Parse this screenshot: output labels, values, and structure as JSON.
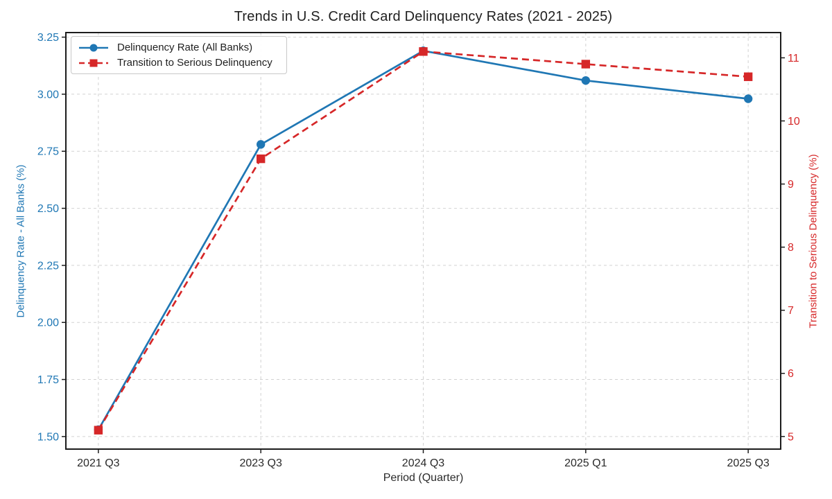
{
  "chart_data": {
    "type": "line",
    "title": "Trends in U.S. Credit Card Delinquency Rates (2021 - 2025)",
    "xlabel": "Period (Quarter)",
    "ylabel_left": "Delinquency Rate - All Banks (%)",
    "ylabel_right": "Transition to Serious Delinquency (%)",
    "categories": [
      "2021 Q3",
      "2023 Q3",
      "2024 Q3",
      "2025 Q1",
      "2025 Q3"
    ],
    "series": [
      {
        "name": "Delinquency Rate (All Banks)",
        "axis": "left",
        "color": "#1f77b4",
        "marker": "circle",
        "line_style": "solid",
        "values": [
          1.53,
          2.78,
          3.19,
          3.06,
          2.98
        ]
      },
      {
        "name": "Transition to Serious Delinquency",
        "axis": "right",
        "color": "#d62728",
        "marker": "square",
        "line_style": "dashed",
        "values": [
          5.1,
          9.4,
          11.1,
          10.9,
          10.7
        ]
      }
    ],
    "left_axis": {
      "ticks": [
        1.5,
        1.75,
        2.0,
        2.25,
        2.5,
        2.75,
        3.0,
        3.25
      ],
      "tick_labels": [
        "1.50",
        "1.75",
        "2.00",
        "2.25",
        "2.50",
        "2.75",
        "3.00",
        "3.25"
      ],
      "lim": [
        1.445,
        3.27
      ],
      "color": "#1f77b4"
    },
    "right_axis": {
      "ticks": [
        5,
        6,
        7,
        8,
        9,
        10,
        11
      ],
      "tick_labels": [
        "5",
        "6",
        "7",
        "8",
        "9",
        "10",
        "11"
      ],
      "lim": [
        4.8,
        11.4
      ],
      "color": "#d62728"
    },
    "x_lim": [
      -0.2,
      4.2
    ],
    "grid": true,
    "legend_position": "upper left"
  }
}
